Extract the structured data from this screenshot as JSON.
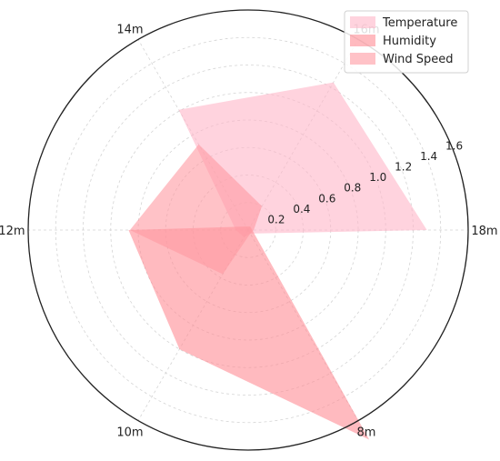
{
  "chart_data": {
    "type": "radar",
    "title": "",
    "categories": [
      "18m",
      "16m",
      "14m",
      "12m",
      "10m",
      "8m"
    ],
    "radial_ticks": [
      "0.2",
      "0.4",
      "0.6",
      "0.8",
      "1.0",
      "1.2",
      "1.4",
      "1.6"
    ],
    "rlim": [
      0,
      1.6
    ],
    "grid": true,
    "legend_position": "top-right",
    "series": [
      {
        "name": "Temperature",
        "values": [
          1.3,
          1.24,
          1.01,
          0.09,
          0.06,
          0.03
        ],
        "color": "#ffb6c8",
        "opacity": 0.6
      },
      {
        "name": "Humidity",
        "values": [
          0.03,
          0.03,
          0.03,
          0.87,
          1.0,
          1.76
        ],
        "color": "#ff8c94",
        "opacity": 0.6
      },
      {
        "name": "Wind Speed",
        "values": [
          0.04,
          0.2,
          0.72,
          0.86,
          0.37,
          0.03
        ],
        "color": "#ff9aa2",
        "opacity": 0.6
      }
    ]
  }
}
